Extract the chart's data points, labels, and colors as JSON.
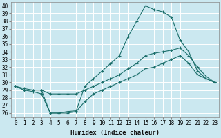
{
  "xlabel": "Humidex (Indice chaleur)",
  "bg_color": "#cbe8f0",
  "grid_color": "#ffffff",
  "line_color": "#1a6e6a",
  "xlim": [
    -0.5,
    23.5
  ],
  "ylim": [
    25.5,
    40.5
  ],
  "xticks": [
    0,
    1,
    2,
    3,
    4,
    5,
    6,
    7,
    8,
    9,
    10,
    11,
    12,
    13,
    14,
    15,
    16,
    17,
    18,
    19,
    20,
    21,
    22,
    23
  ],
  "yticks": [
    26,
    27,
    28,
    29,
    30,
    31,
    32,
    33,
    34,
    35,
    36,
    37,
    38,
    39,
    40
  ],
  "line1_x": [
    0,
    1,
    2,
    3,
    4,
    5,
    6,
    7,
    8,
    9,
    10,
    11,
    12,
    13,
    14,
    15,
    16,
    17,
    18,
    19,
    20,
    21,
    22,
    23
  ],
  "line1_y": [
    29.5,
    29.0,
    29.0,
    29.0,
    26.0,
    26.0,
    26.2,
    26.3,
    29.5,
    30.5,
    31.5,
    32.5,
    33.5,
    36.0,
    38.0,
    40.0,
    39.5,
    39.2,
    38.5,
    35.5,
    34.0,
    31.5,
    30.5,
    30.0
  ],
  "line2_x": [
    0,
    1,
    2,
    3,
    4,
    5,
    6,
    7,
    8,
    9,
    10,
    11,
    12,
    13,
    14,
    15,
    16,
    17,
    18,
    19,
    20,
    21,
    22,
    23
  ],
  "line2_y": [
    29.5,
    29.2,
    29.0,
    29.0,
    28.5,
    28.5,
    28.5,
    28.5,
    29.0,
    29.5,
    30.0,
    30.5,
    31.0,
    31.8,
    32.5,
    33.5,
    33.8,
    34.0,
    34.2,
    34.5,
    33.5,
    32.0,
    30.8,
    30.0
  ],
  "line3_x": [
    0,
    1,
    2,
    3,
    4,
    5,
    6,
    7,
    8,
    9,
    10,
    11,
    12,
    13,
    14,
    15,
    16,
    17,
    18,
    19,
    20,
    21,
    22,
    23
  ],
  "line3_y": [
    29.5,
    29.0,
    28.8,
    28.5,
    26.0,
    26.0,
    26.0,
    26.2,
    27.5,
    28.5,
    29.0,
    29.5,
    30.0,
    30.5,
    31.0,
    31.8,
    32.0,
    32.5,
    33.0,
    33.5,
    32.5,
    31.0,
    30.5,
    30.0
  ]
}
